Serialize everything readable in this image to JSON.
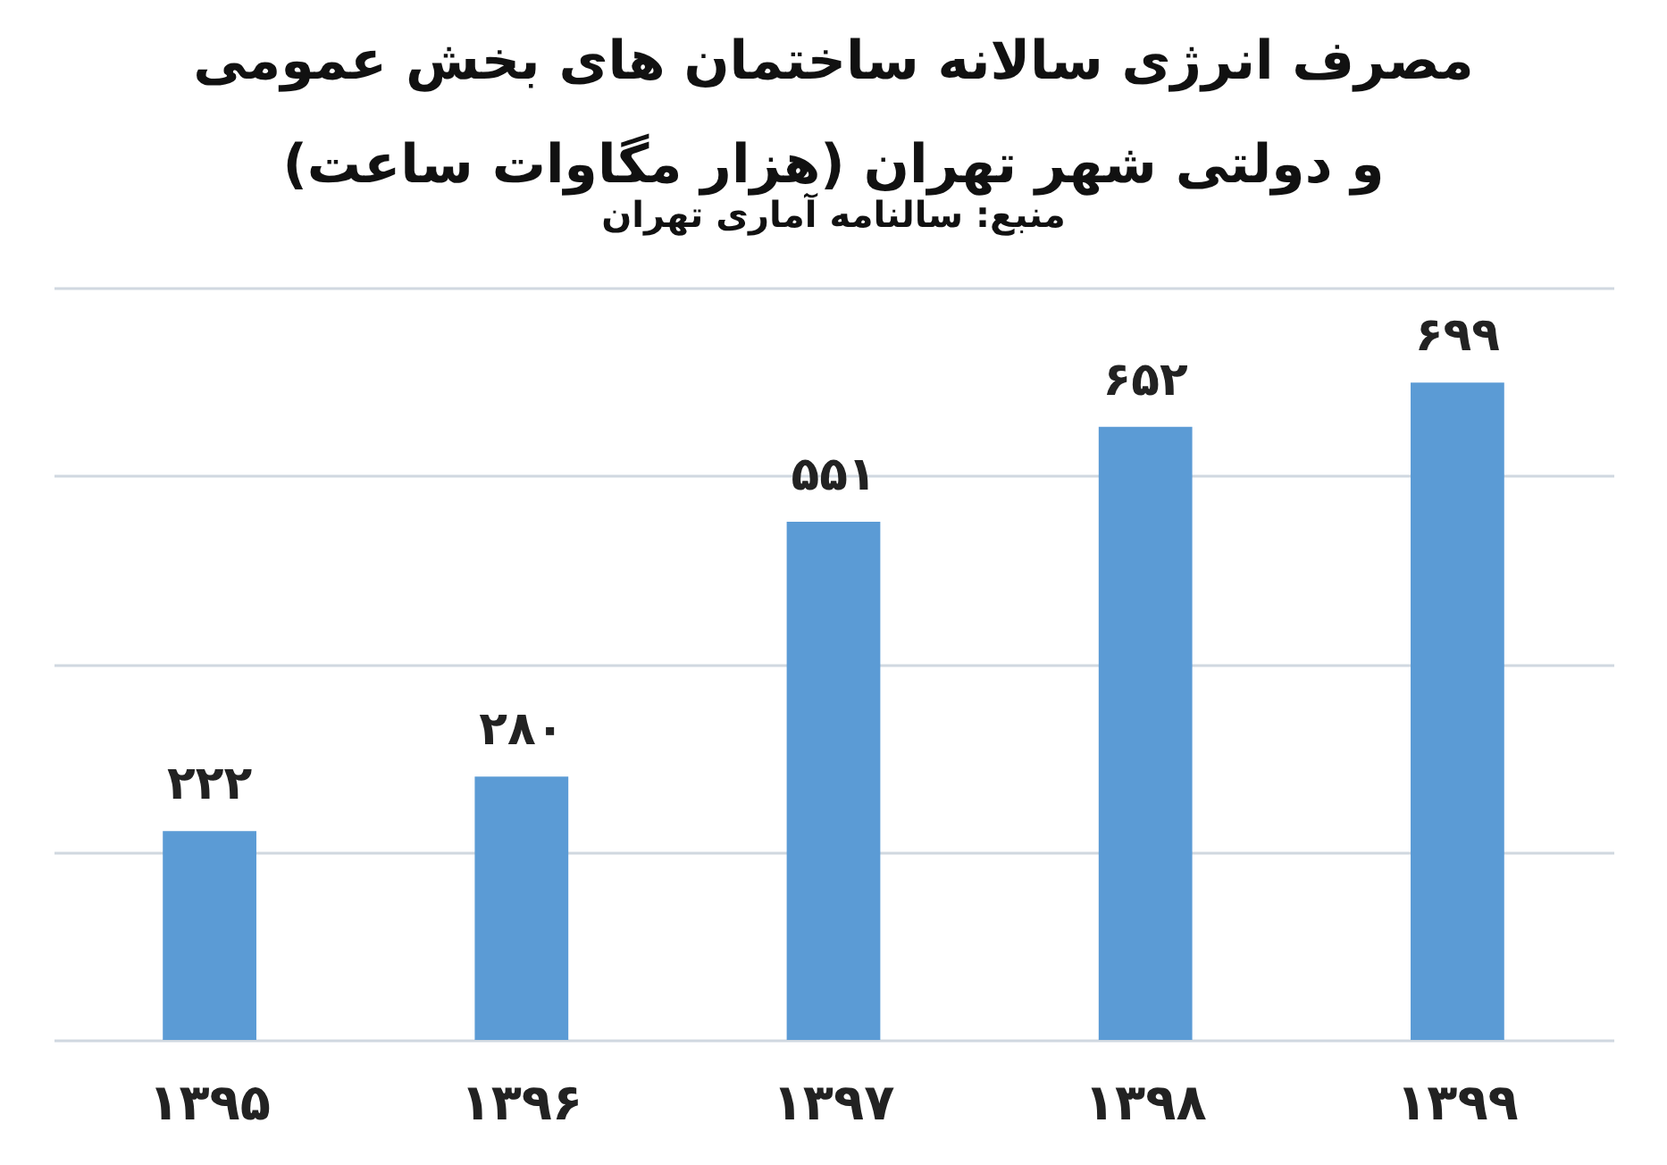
{
  "chart_data": {
    "type": "bar",
    "title": "مصرف انرژی سالانه ساختمان های بخش عمومی و دولتی شهر تهران (هزار مگاوات ساعت)",
    "annotations": [
      "منبع: سالنامه آماری تهران"
    ],
    "categories": [
      "۱۳۹۵",
      "۱۳۹۶",
      "۱۳۹۷",
      "۱۳۹۸",
      "۱۳۹۹"
    ],
    "values": [
      222,
      280,
      551,
      652,
      699
    ],
    "value_labels": [
      "۲۲۲",
      "۲۸۰",
      "۵۵۱",
      "۶۵۲",
      "۶۹۹"
    ],
    "color": "#5b9bd5",
    "ylim": [
      0,
      800
    ],
    "yticks": [
      {
        "value": 0,
        "label": null
      },
      {
        "value": 200,
        "label": null
      },
      {
        "value": 400,
        "label": null
      },
      {
        "value": 600,
        "label": null
      },
      {
        "value": 800,
        "label": null
      }
    ],
    "grid": "y",
    "tick_labels": "x"
  }
}
